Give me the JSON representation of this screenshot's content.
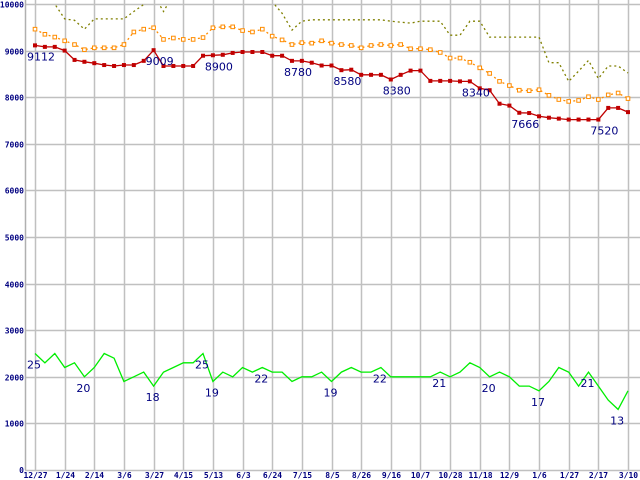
{
  "chart_data": {
    "type": "line",
    "title": "",
    "xlabel": "",
    "ylabel": "",
    "ylim": [
      0,
      10000
    ],
    "yticks": [
      0,
      1000,
      2000,
      3000,
      4000,
      5000,
      6000,
      7000,
      8000,
      9000,
      10000
    ],
    "grid": true,
    "x_tick_labels": [
      "12/27",
      "1/24",
      "2/14",
      "3/6",
      "3/27",
      "4/15",
      "5/13",
      "6/3",
      "6/24",
      "7/15",
      "8/5",
      "8/26",
      "9/16",
      "10/7",
      "10/28",
      "11/18",
      "12/9",
      "1/6",
      "1/27",
      "2/17",
      "3/10"
    ],
    "points_per_tick": 3,
    "series": [
      {
        "name": "olive-dotted",
        "color": "#808000",
        "style": "dotted",
        "markers": "none",
        "values": [
          10700,
          10350,
          10000,
          9680,
          9650,
          9460,
          9680,
          9680,
          9680,
          9680,
          9840,
          9990,
          10200,
          9840,
          10200,
          10300,
          10300,
          10300,
          10300,
          10300,
          10300,
          10300,
          10300,
          10300,
          10050,
          9800,
          9440,
          9630,
          9660,
          9660,
          9660,
          9660,
          9660,
          9660,
          9660,
          9660,
          9630,
          9610,
          9590,
          9630,
          9630,
          9630,
          9330,
          9330,
          9630,
          9630,
          9290,
          9290,
          9290,
          9290,
          9290,
          9290,
          8740,
          8740,
          8340,
          8560,
          8790,
          8400,
          8670,
          8670,
          8520
        ]
      },
      {
        "name": "orange-dotted",
        "color": "#ff8c00",
        "style": "dotted",
        "markers": "open-square",
        "values": [
          9460,
          9350,
          9290,
          9210,
          9130,
          9020,
          9060,
          9060,
          9060,
          9130,
          9400,
          9460,
          9490,
          9240,
          9270,
          9240,
          9240,
          9280,
          9490,
          9510,
          9510,
          9430,
          9400,
          9460,
          9310,
          9230,
          9130,
          9170,
          9160,
          9210,
          9160,
          9130,
          9110,
          9060,
          9110,
          9130,
          9110,
          9130,
          9040,
          9040,
          9020,
          8960,
          8840,
          8840,
          8750,
          8630,
          8510,
          8340,
          8250,
          8150,
          8140,
          8160,
          8040,
          7950,
          7910,
          7930,
          8010,
          7950,
          8050,
          8090,
          7970
        ]
      },
      {
        "name": "red-solid",
        "color": "#c00000",
        "style": "solid",
        "markers": "filled-square",
        "values": [
          9112,
          9080,
          9080,
          9000,
          8800,
          8760,
          8730,
          8690,
          8670,
          8690,
          8690,
          8780,
          9009,
          8670,
          8670,
          8670,
          8670,
          8890,
          8900,
          8910,
          8950,
          8970,
          8970,
          8970,
          8890,
          8890,
          8780,
          8780,
          8740,
          8680,
          8680,
          8580,
          8590,
          8480,
          8480,
          8480,
          8380,
          8480,
          8570,
          8570,
          8350,
          8350,
          8350,
          8340,
          8340,
          8190,
          8150,
          7860,
          7820,
          7666,
          7660,
          7590,
          7560,
          7540,
          7520,
          7520,
          7520,
          7520,
          7770,
          7770,
          7680
        ]
      },
      {
        "name": "green-solid",
        "color": "#00ee00",
        "style": "solid",
        "markers": "none",
        "values": [
          2500,
          2300,
          2500,
          2200,
          2300,
          2000,
          2200,
          2500,
          2400,
          1900,
          2000,
          2100,
          1800,
          2100,
          2200,
          2300,
          2300,
          2500,
          1900,
          2100,
          2000,
          2200,
          2100,
          2200,
          2100,
          2100,
          1900,
          2000,
          2000,
          2100,
          1900,
          2100,
          2200,
          2100,
          2100,
          2200,
          2000,
          2000,
          2000,
          2000,
          2000,
          2100,
          2000,
          2100,
          2300,
          2200,
          2000,
          2100,
          2000,
          1800,
          1800,
          1700,
          1900,
          2200,
          2100,
          1800,
          2100,
          1800,
          1500,
          1300,
          1700
        ]
      }
    ],
    "annotations": [
      {
        "series": "red-solid",
        "index": 0,
        "text": "9112"
      },
      {
        "series": "red-solid",
        "index": 12,
        "text": "9009"
      },
      {
        "series": "red-solid",
        "index": 18,
        "text": "8900"
      },
      {
        "series": "red-solid",
        "index": 26,
        "text": "8780"
      },
      {
        "series": "red-solid",
        "index": 31,
        "text": "8580"
      },
      {
        "series": "red-solid",
        "index": 36,
        "text": "8380"
      },
      {
        "series": "red-solid",
        "index": 44,
        "text": "8340"
      },
      {
        "series": "red-solid",
        "index": 49,
        "text": "7666"
      },
      {
        "series": "red-solid",
        "index": 57,
        "text": "7520"
      },
      {
        "series": "green-solid",
        "index": 0,
        "text": "25"
      },
      {
        "series": "green-solid",
        "index": 5,
        "text": "20"
      },
      {
        "series": "green-solid",
        "index": 12,
        "text": "18"
      },
      {
        "series": "green-solid",
        "index": 17,
        "text": "25"
      },
      {
        "series": "green-solid",
        "index": 18,
        "text": "19"
      },
      {
        "series": "green-solid",
        "index": 23,
        "text": "22"
      },
      {
        "series": "green-solid",
        "index": 30,
        "text": "19"
      },
      {
        "series": "green-solid",
        "index": 35,
        "text": "22"
      },
      {
        "series": "green-solid",
        "index": 41,
        "text": "21"
      },
      {
        "series": "green-solid",
        "index": 46,
        "text": "20"
      },
      {
        "series": "green-solid",
        "index": 51,
        "text": "17"
      },
      {
        "series": "green-solid",
        "index": 56,
        "text": "21"
      },
      {
        "series": "green-solid",
        "index": 59,
        "text": "13"
      }
    ]
  }
}
